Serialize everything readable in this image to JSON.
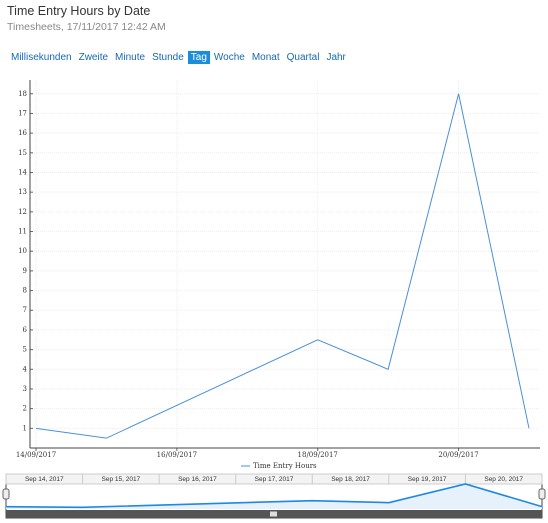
{
  "chart_data": {
    "type": "line",
    "title": "Time Entry Hours by Date",
    "subtitle": "Timesheets, 17/11/2017 12:42 AM",
    "x": [
      "14/09/2017",
      "15/09/2017",
      "18/09/2017",
      "19/09/2017",
      "20/09/2017",
      "21/09/2017"
    ],
    "series": [
      {
        "name": "Time Entry Hours",
        "color": "#4a90d9",
        "values": [
          1,
          0.5,
          5.5,
          4,
          18,
          1
        ]
      }
    ],
    "xlim": [
      "14/09/2017",
      "21/09/2017"
    ],
    "xticks": [
      "14/09/2017",
      "16/09/2017",
      "18/09/2017",
      "20/09/2017"
    ],
    "ylim": [
      0,
      18.7
    ],
    "yticks": [
      1,
      2,
      3,
      4,
      5,
      6,
      7,
      8,
      9,
      10,
      11,
      12,
      13,
      14,
      15,
      16,
      17,
      18
    ],
    "grid": true
  },
  "zoom_buttons": [
    "Millisekunden",
    "Zweite",
    "Minute",
    "Stunde",
    "Tag",
    "Woche",
    "Monat",
    "Quartal",
    "Jahr"
  ],
  "selected_zoom": "Tag",
  "navigator": {
    "labels": [
      "Sep 14, 2017",
      "Sep 15, 2017",
      "Sep 16, 2017",
      "Sep 17, 2017",
      "Sep 18, 2017",
      "Sep 19, 2017",
      "Sep 20, 2017"
    ]
  }
}
